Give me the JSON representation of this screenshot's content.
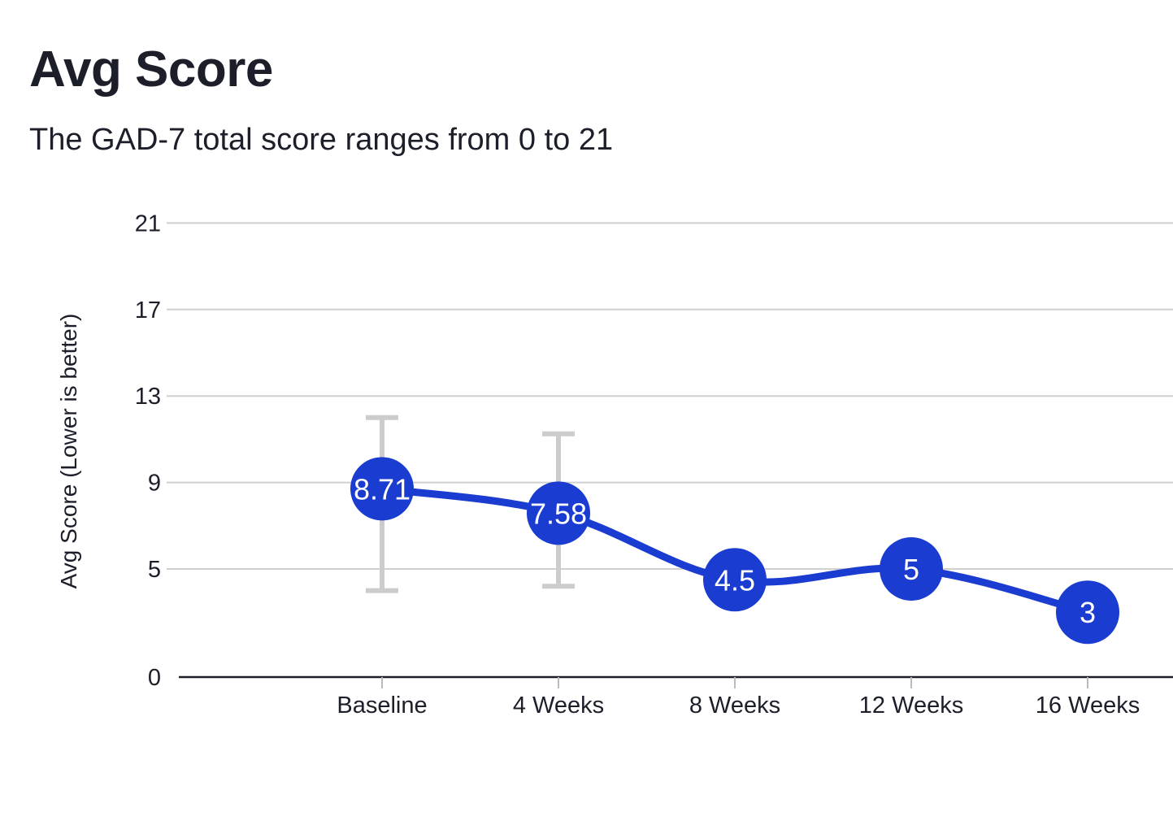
{
  "chart_data": {
    "type": "line",
    "title": "Avg Score",
    "subtitle": "The GAD-7 total score ranges from 0 to 21",
    "xlabel": "",
    "ylabel": "Avg Score (Lower is better)",
    "categories": [
      "Baseline",
      "4 Weeks",
      "8 Weeks",
      "12 Weeks",
      "16 Weeks"
    ],
    "values": [
      8.71,
      7.58,
      4.5,
      5,
      3
    ],
    "data_labels": [
      "8.71",
      "7.58",
      "4.5",
      "5",
      "3"
    ],
    "error_bars": [
      {
        "low": 4,
        "high": 12
      },
      {
        "low": 4.2,
        "high": 11.25
      },
      null,
      null,
      null
    ],
    "ylim": [
      0,
      21
    ],
    "yticks": [
      0,
      5,
      9,
      13,
      17,
      21
    ],
    "grid": true,
    "legend": "none",
    "colors": {
      "line": "#1a3cd0",
      "marker": "#1a3cd0",
      "error_bar": "#cccccc",
      "grid": "#d0d0d0",
      "axis": "#1c1f2a"
    }
  }
}
